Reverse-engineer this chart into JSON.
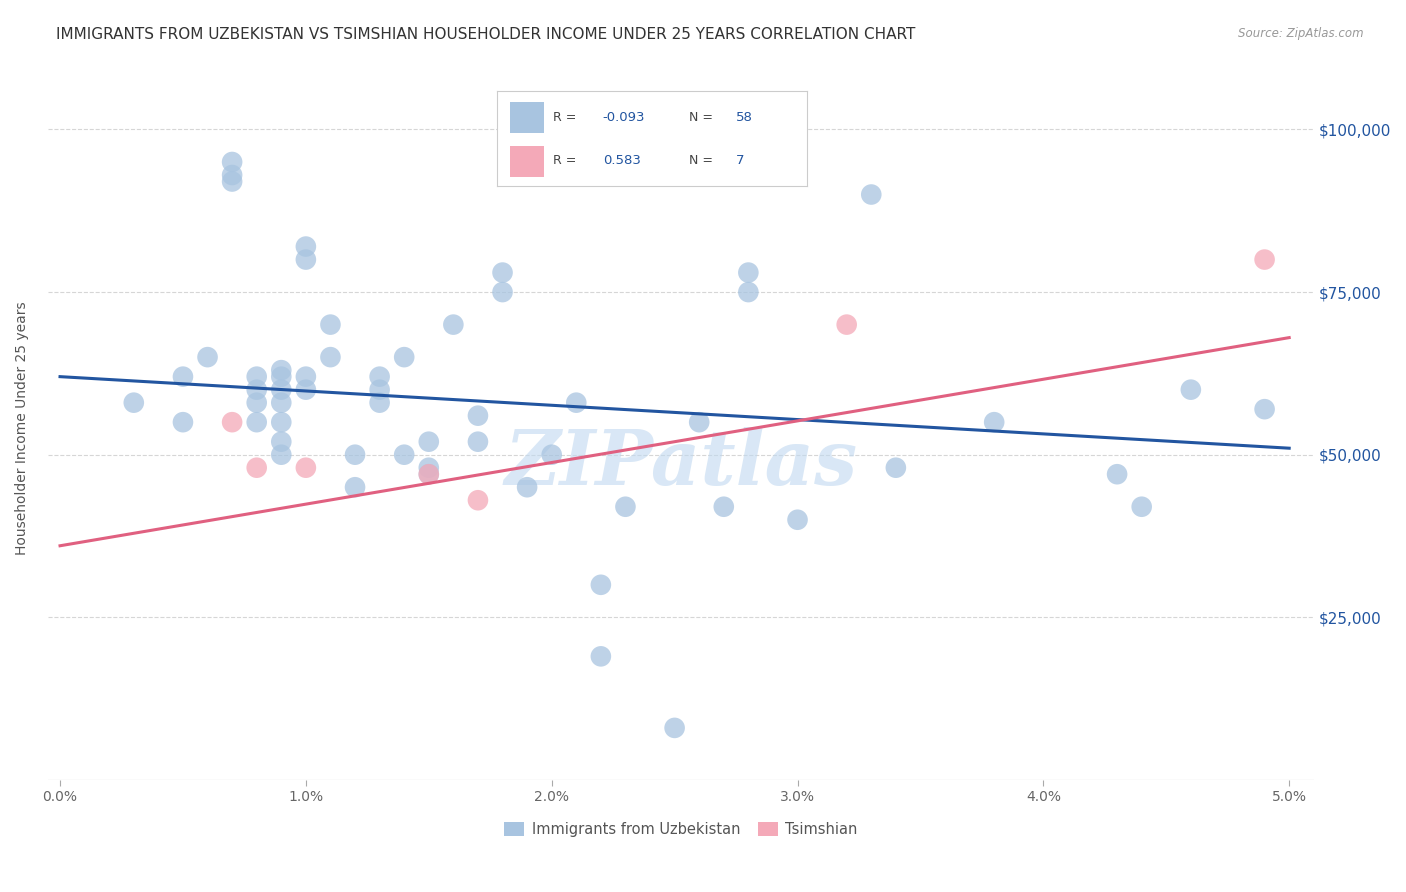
{
  "title": "IMMIGRANTS FROM UZBEKISTAN VS TSIMSHIAN HOUSEHOLDER INCOME UNDER 25 YEARS CORRELATION CHART",
  "source": "Source: ZipAtlas.com",
  "ylabel": "Householder Income Under 25 years",
  "xlabel_ticks": [
    "0.0%",
    "1.0%",
    "2.0%",
    "3.0%",
    "4.0%",
    "5.0%"
  ],
  "xlabel_vals": [
    0.0,
    0.01,
    0.02,
    0.03,
    0.04,
    0.05
  ],
  "ylabel_ticks": [
    "$25,000",
    "$50,000",
    "$75,000",
    "$100,000"
  ],
  "ylabel_vals": [
    25000,
    50000,
    75000,
    100000
  ],
  "blue_R": "-0.093",
  "blue_N": "58",
  "pink_R": "0.583",
  "pink_N": "7",
  "legend_label1": "Immigrants from Uzbekistan",
  "legend_label2": "Tsimshian",
  "watermark": "ZIPatlas",
  "blue_color": "#a8c4e0",
  "blue_line_color": "#2255a0",
  "pink_color": "#f4a9b8",
  "pink_line_color": "#e06080",
  "blue_scatter_x": [
    0.003,
    0.005,
    0.005,
    0.006,
    0.007,
    0.007,
    0.007,
    0.008,
    0.008,
    0.008,
    0.008,
    0.009,
    0.009,
    0.009,
    0.009,
    0.009,
    0.009,
    0.009,
    0.01,
    0.01,
    0.01,
    0.01,
    0.011,
    0.011,
    0.012,
    0.012,
    0.013,
    0.013,
    0.013,
    0.014,
    0.014,
    0.015,
    0.015,
    0.015,
    0.016,
    0.017,
    0.017,
    0.018,
    0.018,
    0.019,
    0.02,
    0.021,
    0.022,
    0.022,
    0.023,
    0.025,
    0.026,
    0.027,
    0.028,
    0.028,
    0.03,
    0.033,
    0.034,
    0.038,
    0.043,
    0.044,
    0.046,
    0.049
  ],
  "blue_scatter_y": [
    58000,
    62000,
    55000,
    65000,
    95000,
    92000,
    93000,
    55000,
    58000,
    60000,
    62000,
    50000,
    52000,
    55000,
    60000,
    62000,
    63000,
    58000,
    82000,
    80000,
    62000,
    60000,
    70000,
    65000,
    50000,
    45000,
    58000,
    60000,
    62000,
    65000,
    50000,
    47000,
    52000,
    48000,
    70000,
    56000,
    52000,
    78000,
    75000,
    45000,
    50000,
    58000,
    30000,
    19000,
    42000,
    8000,
    55000,
    42000,
    75000,
    78000,
    40000,
    90000,
    48000,
    55000,
    47000,
    42000,
    60000,
    57000
  ],
  "pink_scatter_x": [
    0.007,
    0.008,
    0.01,
    0.015,
    0.017,
    0.032,
    0.049
  ],
  "pink_scatter_y": [
    55000,
    48000,
    48000,
    47000,
    43000,
    70000,
    80000
  ],
  "blue_line_x": [
    0.0,
    0.05
  ],
  "blue_line_y": [
    62000,
    51000
  ],
  "pink_line_x": [
    0.0,
    0.05
  ],
  "pink_line_y": [
    36000,
    68000
  ],
  "xlim": [
    -0.0005,
    0.051
  ],
  "ylim": [
    0,
    108000
  ],
  "title_fontsize": 11,
  "axis_fontsize": 10,
  "tick_fontsize": 10
}
